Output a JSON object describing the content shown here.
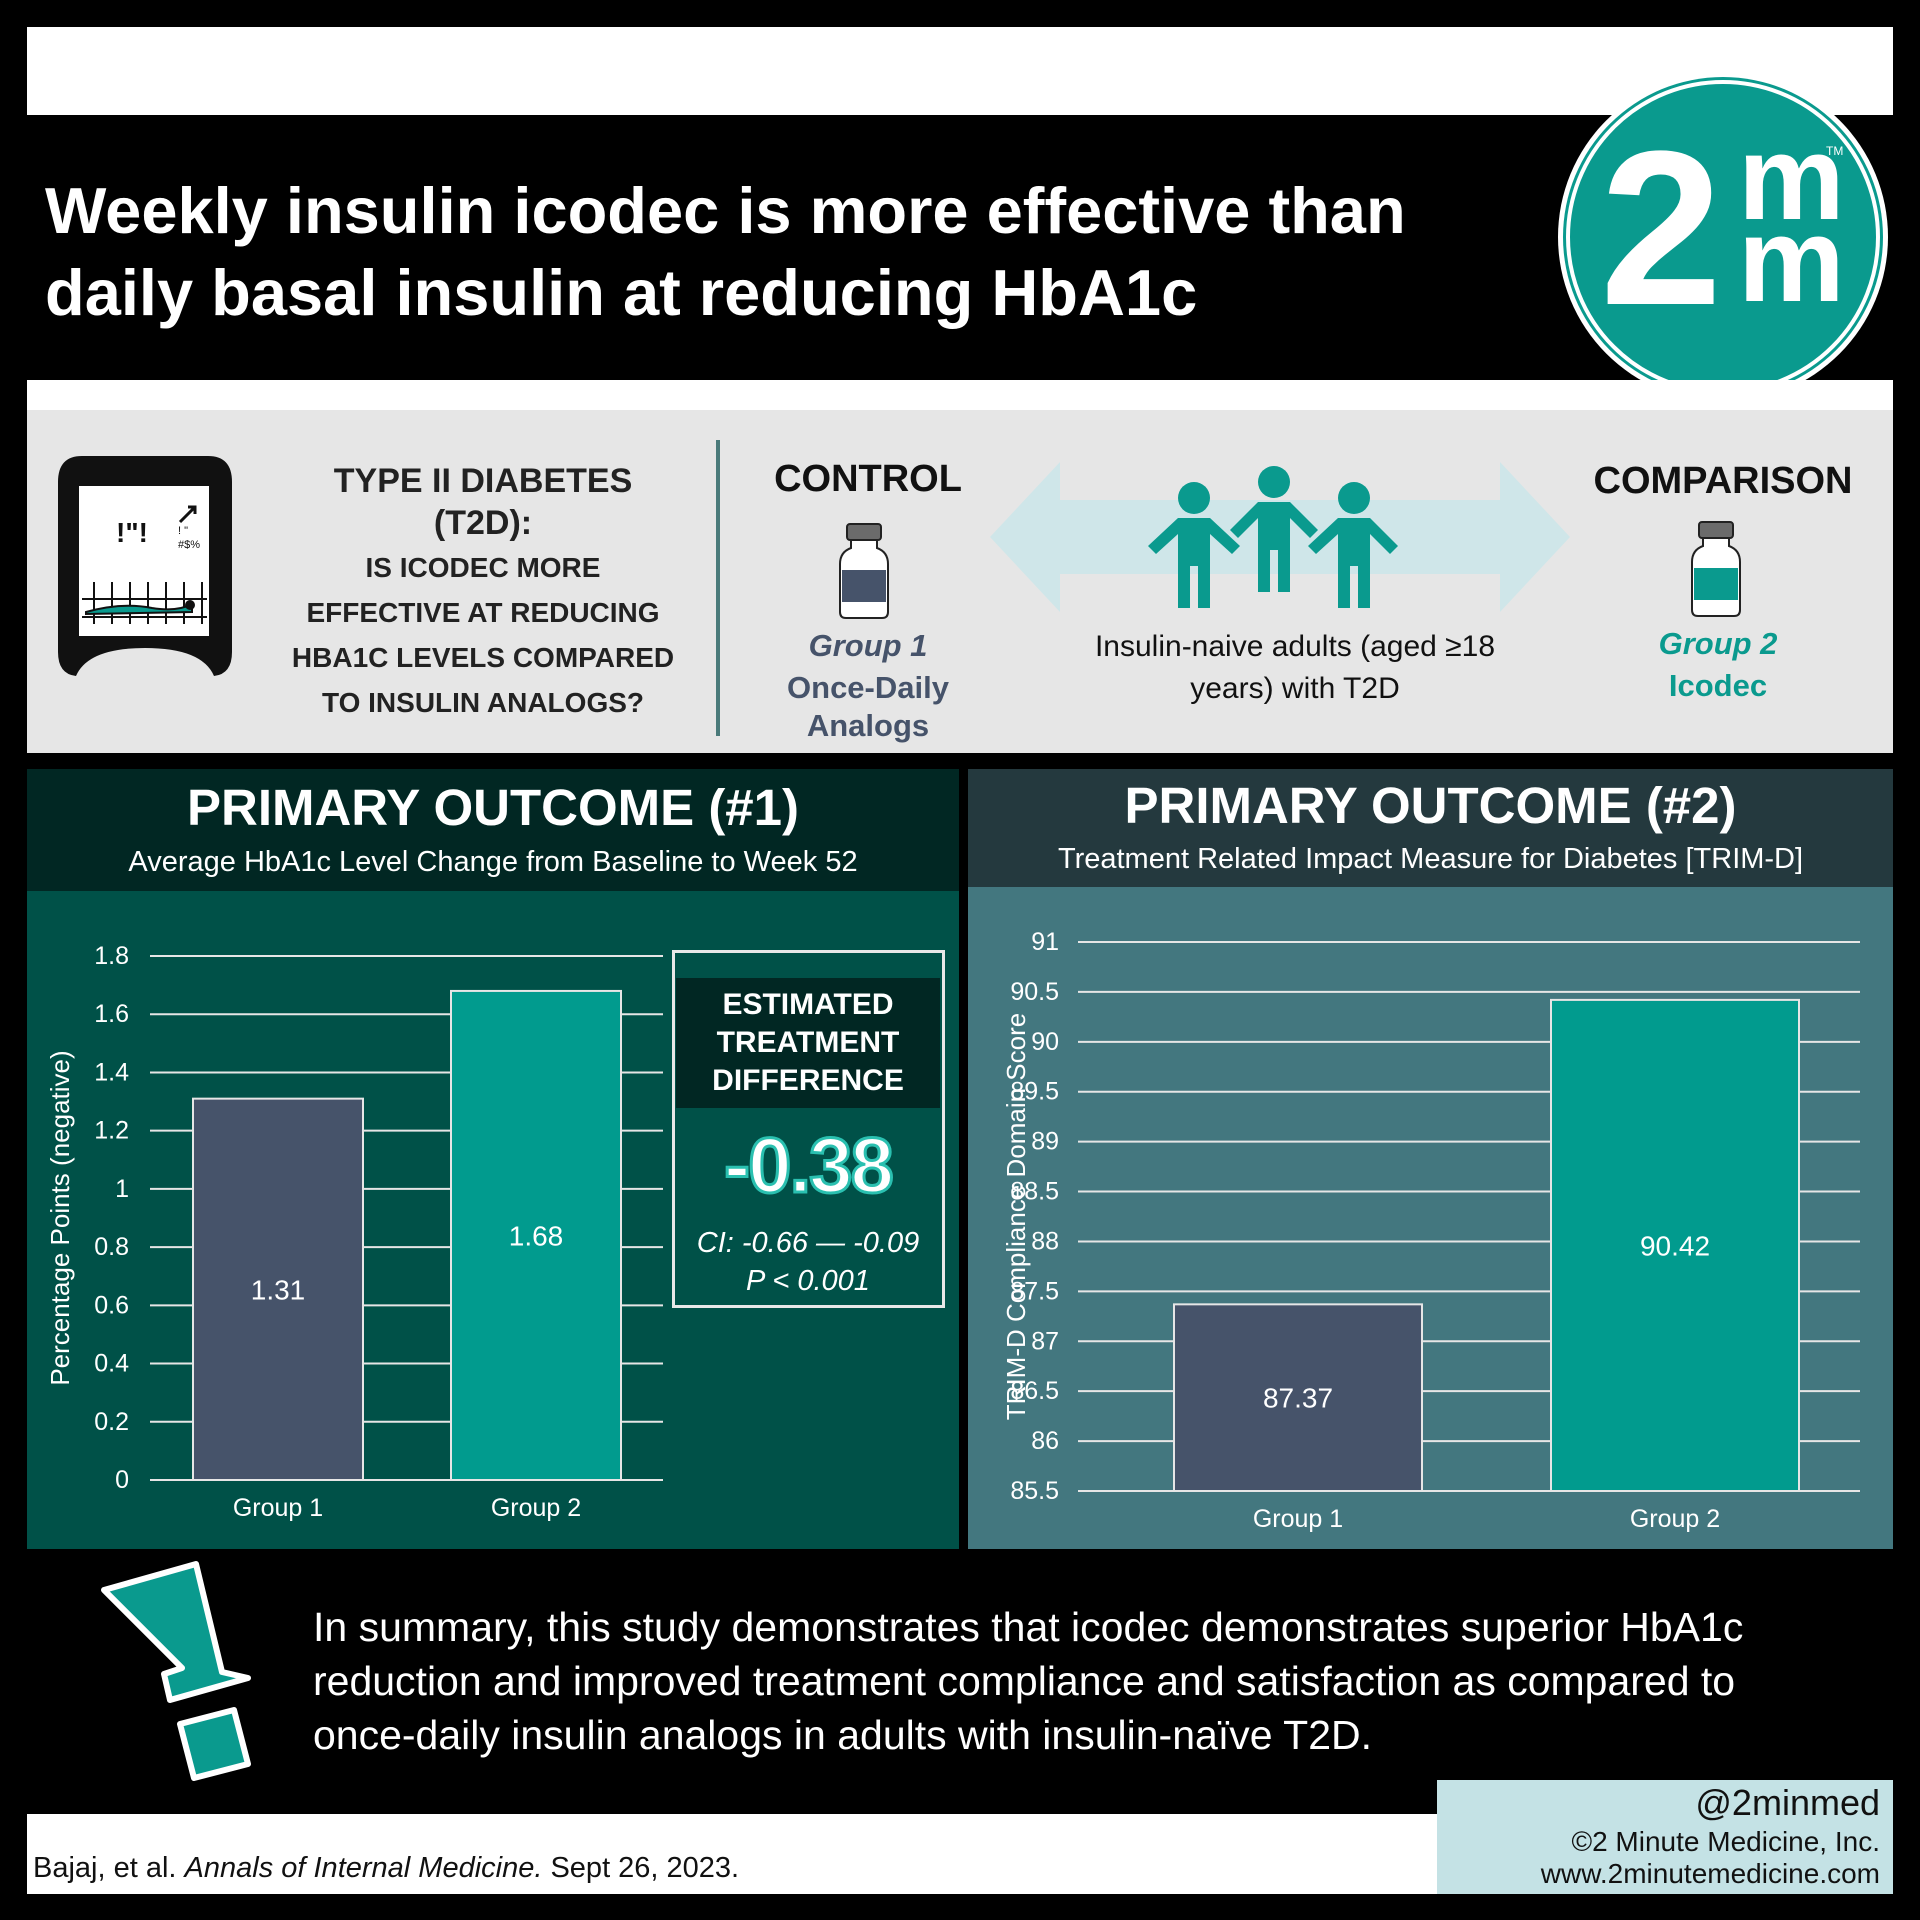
{
  "header": {
    "title_line1": "Weekly insulin icodec is more effective than",
    "title_line2": "daily basal insulin at reducing HbA1c"
  },
  "logo": {
    "digit": "2",
    "m_top": "m",
    "m_bottom": "m",
    "tm": "TM"
  },
  "study": {
    "device_text1": "!\"!",
    "device_text2": "! \"",
    "device_text3": "#$%",
    "question_line1": "TYPE II DIABETES",
    "question_line2": "(T2D):",
    "question_line3": "IS ICODEC MORE",
    "question_line4": "EFFECTIVE AT REDUCING",
    "question_line5": "HBA1C LEVELS COMPARED",
    "question_line6": "TO INSULIN ANALOGS?",
    "control_header": "CONTROL",
    "comparison_header": "COMPARISON",
    "group1_label": "Group 1",
    "group1_name_line1": "Once-Daily",
    "group1_name_line2": "Analogs",
    "group2_label": "Group 2",
    "group2_name": "Icodec",
    "population_line1": "Insulin-naive adults (aged ≥18",
    "population_line2": "years) with T2D"
  },
  "outcome1": {
    "title": "PRIMARY OUTCOME (#1)",
    "subtitle": "Average HbA1c Level Change from Baseline to Week 52",
    "etd_line1": "ESTIMATED",
    "etd_line2": "TREATMENT",
    "etd_line3": "DIFFERENCE",
    "etd_value": "-0.38",
    "ci": "CI: -0.66 — -0.09",
    "p": "P < 0.001"
  },
  "outcome2": {
    "title": "PRIMARY OUTCOME (#2)",
    "subtitle": "Treatment Related Impact Measure for Diabetes [TRIM-D]"
  },
  "chart_data": [
    {
      "type": "bar",
      "categories": [
        "Group 1",
        "Group 2"
      ],
      "values": [
        1.31,
        1.68
      ],
      "value_labels": [
        "1.31",
        "1.68"
      ],
      "ylabel": "Percentage Points (negative)",
      "ylim": [
        0,
        1.8
      ],
      "yticks": [
        "0",
        "0.2",
        "0.4",
        "0.6",
        "0.8",
        "1",
        "1.2",
        "1.4",
        "1.6",
        "1.8"
      ],
      "grid": true,
      "colors": [
        "#46536a",
        "#019b8e"
      ]
    },
    {
      "type": "bar",
      "categories": [
        "Group 1",
        "Group 2"
      ],
      "values": [
        87.37,
        90.42
      ],
      "value_labels": [
        "87.37",
        "90.42"
      ],
      "ylabel": "TRIM-D  Compliance Domain Score",
      "ylim": [
        85.5,
        91
      ],
      "yticks": [
        "85.5",
        "86",
        "86.5",
        "87",
        "87.5",
        "88",
        "88.5",
        "89",
        "89.5",
        "90",
        "90.5",
        "91"
      ],
      "grid": true,
      "colors": [
        "#46536a",
        "#019b8e"
      ]
    }
  ],
  "summary": {
    "line1": "In summary, this study demonstrates that icodec demonstrates superior HbA1c",
    "line2": "reduction and improved treatment compliance and satisfaction as compared to",
    "line3": "once-daily insulin analogs in adults with insulin-naïve T2D."
  },
  "footer": {
    "citation_authors": "Bajaj, et al. ",
    "citation_journal": "Annals of Internal Medicine.",
    "citation_date": " Sept 26, 2023.",
    "handle": "@2minmed",
    "copyright": "©2 Minute Medicine, Inc.",
    "website": "www.2minutemedicine.com"
  },
  "colors": {
    "teal": "#019b8e",
    "slate": "#46536a",
    "dark_teal": "#005148",
    "panel2": "#43777f"
  }
}
